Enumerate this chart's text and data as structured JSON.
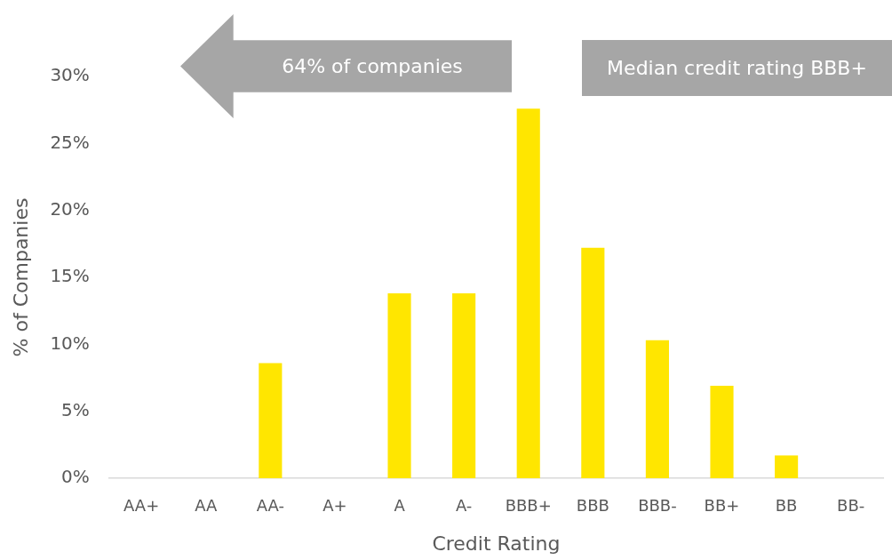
{
  "chart_data": {
    "type": "bar",
    "xlabel": "Credit Rating",
    "ylabel": "% of Companies",
    "categories": [
      "AA+",
      "AA",
      "AA-",
      "A+",
      "A",
      "A-",
      "BBB+",
      "BBB",
      "BBB-",
      "BB+",
      "BB",
      "BB-"
    ],
    "values": [
      0,
      0,
      8.6,
      0,
      13.8,
      13.8,
      27.6,
      17.2,
      10.3,
      6.9,
      1.7,
      0
    ],
    "color": "#ffe600",
    "ylim": [
      0,
      30
    ],
    "yticks": [
      {
        "value": 0,
        "label": "0%"
      },
      {
        "value": 5,
        "label": "5%"
      },
      {
        "value": 10,
        "label": "10%"
      },
      {
        "value": 15,
        "label": "15%"
      },
      {
        "value": 20,
        "label": "20%"
      },
      {
        "value": 25,
        "label": "25%"
      },
      {
        "value": 30,
        "label": "30%"
      }
    ],
    "grid": false,
    "legend": false,
    "annotations": [
      "64% of companies",
      "Median credit rating BBB+"
    ]
  }
}
